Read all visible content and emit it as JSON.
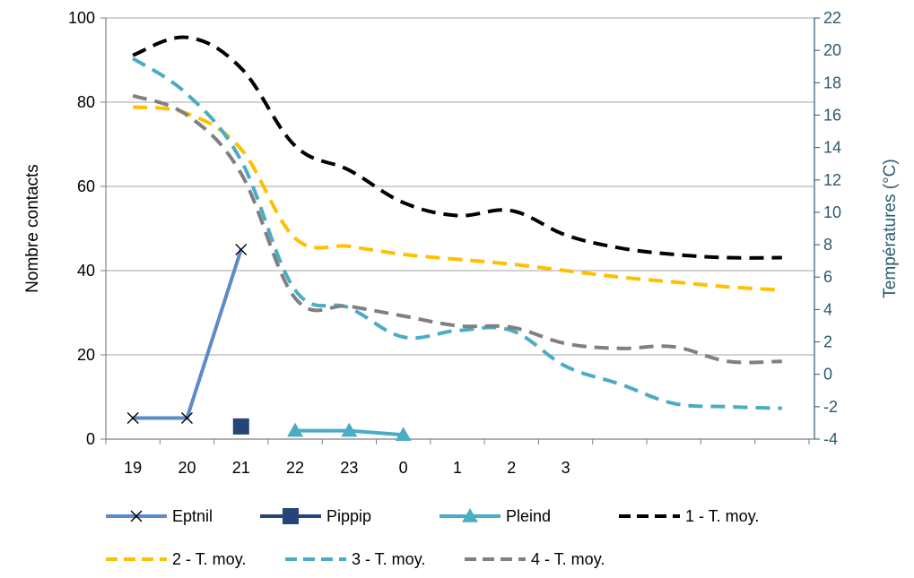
{
  "chart_data": {
    "type": "line",
    "x_tick_labels": [
      "19",
      "20",
      "21",
      "22",
      "23",
      "0",
      "1",
      "2",
      "3",
      "",
      "",
      "",
      ""
    ],
    "ylabel_left": "Nombre contacts",
    "ylabel_right": "Températures (°C)",
    "ylim_left": [
      0,
      100
    ],
    "ylim_right": [
      -4,
      22
    ],
    "yticks_left": [
      0,
      20,
      40,
      60,
      80,
      100
    ],
    "yticks_right": [
      -4,
      -2,
      0,
      2,
      4,
      6,
      8,
      10,
      12,
      14,
      16,
      18,
      20,
      22
    ],
    "grid": "horizontal",
    "legend_position": "bottom",
    "series": [
      {
        "name": "Eptnil",
        "axis": "left",
        "color": "#5b8bc8",
        "marker": "x",
        "dash": "solid",
        "x": [
          0,
          1,
          2
        ],
        "values": [
          5,
          5,
          45
        ]
      },
      {
        "name": "Pippip",
        "axis": "left",
        "color": "#264478",
        "marker": "square",
        "dash": "solid",
        "x": [
          2
        ],
        "values": [
          3
        ]
      },
      {
        "name": "Pleind",
        "axis": "left",
        "color": "#4bacc6",
        "marker": "triangle",
        "dash": "solid",
        "x": [
          3,
          4,
          5
        ],
        "values": [
          2,
          2,
          1
        ]
      },
      {
        "name": "1 - T. moy.",
        "axis": "right",
        "color": "#000000",
        "marker": "none",
        "dash": "dashed",
        "x": [
          0,
          1,
          2,
          3,
          4,
          5,
          6,
          7,
          8,
          9,
          10,
          11,
          12
        ],
        "values": [
          19.7,
          20.8,
          18.9,
          14.1,
          12.6,
          10.6,
          9.8,
          10.1,
          8.6,
          7.8,
          7.4,
          7.2,
          7.2
        ]
      },
      {
        "name": "2 - T. moy.",
        "axis": "right",
        "color": "#ffc000",
        "marker": "none",
        "dash": "dashed",
        "x": [
          0,
          1,
          2,
          3,
          4,
          5,
          6,
          7,
          8,
          9,
          10,
          11,
          12
        ],
        "values": [
          16.5,
          16.1,
          13.9,
          8.4,
          7.9,
          7.4,
          7.1,
          6.8,
          6.4,
          6.0,
          5.7,
          5.4,
          5.2
        ]
      },
      {
        "name": "3 - T. moy.",
        "axis": "right",
        "color": "#4bacc6",
        "marker": "none",
        "dash": "dashed",
        "x": [
          0,
          1,
          2,
          3,
          4,
          5,
          6,
          7,
          8,
          9,
          10,
          11,
          12
        ],
        "values": [
          19.5,
          17.3,
          13.2,
          5.2,
          4.1,
          2.3,
          2.7,
          2.7,
          0.5,
          -0.6,
          -1.8,
          -2.0,
          -2.1
        ]
      },
      {
        "name": "4 - T. moy.",
        "axis": "right",
        "color": "#808080",
        "marker": "none",
        "dash": "dashed",
        "x": [
          0,
          1,
          2,
          3,
          4,
          5,
          6,
          7,
          8,
          9,
          10,
          11,
          12
        ],
        "values": [
          17.2,
          16.0,
          12.4,
          4.7,
          4.2,
          3.6,
          3.0,
          2.9,
          1.9,
          1.6,
          1.7,
          0.8,
          0.8
        ]
      }
    ]
  }
}
